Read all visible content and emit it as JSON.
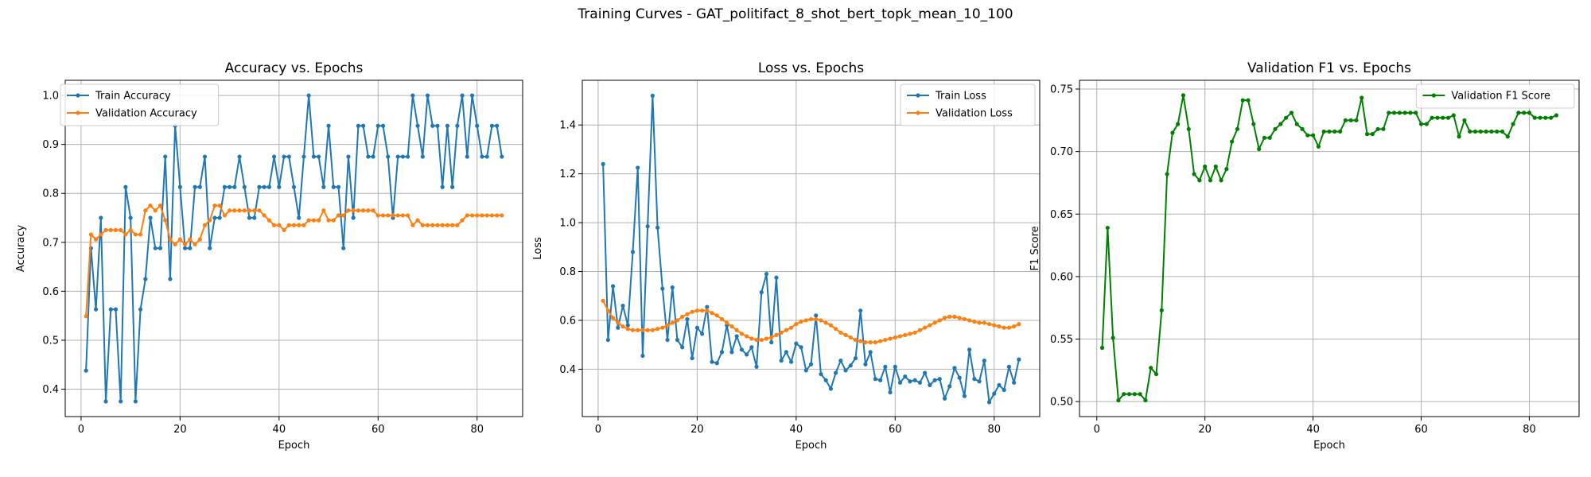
{
  "figure": {
    "title": "Training Curves - GAT_politifact_8_shot_bert_topk_mean_10_100"
  },
  "chart_data": [
    {
      "type": "line",
      "title": "Accuracy vs. Epochs",
      "xlabel": "Epoch",
      "ylabel": "Accuracy",
      "xlim": [
        -3.2,
        89.2
      ],
      "ylim": [
        0.344,
        1.031
      ],
      "xticks": [
        0,
        20,
        40,
        60,
        80
      ],
      "yticks": [
        0.4,
        0.5,
        0.6,
        0.7,
        0.8,
        0.9,
        1.0
      ],
      "ytick_labels": [
        "0.4",
        "0.5",
        "0.6",
        "0.7",
        "0.8",
        "0.9",
        "1.0"
      ],
      "grid": true,
      "legend_position": "top-left",
      "series": [
        {
          "name": "Train Accuracy",
          "color": "#1f77b4",
          "values": [
            0.438,
            0.688,
            0.563,
            0.75,
            0.375,
            0.563,
            0.563,
            0.375,
            0.813,
            0.75,
            0.375,
            0.563,
            0.625,
            0.75,
            0.688,
            0.688,
            0.875,
            0.625,
            0.938,
            0.813,
            0.688,
            0.688,
            0.813,
            0.813,
            0.875,
            0.688,
            0.75,
            0.75,
            0.813,
            0.813,
            0.813,
            0.875,
            0.813,
            0.75,
            0.75,
            0.813,
            0.813,
            0.813,
            0.875,
            0.813,
            0.875,
            0.875,
            0.813,
            0.75,
            0.875,
            1.0,
            0.875,
            0.875,
            0.813,
            0.938,
            0.813,
            0.813,
            0.688,
            0.875,
            0.75,
            0.938,
            0.938,
            0.875,
            0.875,
            0.938,
            0.938,
            0.875,
            0.75,
            0.875,
            0.875,
            0.875,
            1.0,
            0.938,
            0.875,
            1.0,
            0.938,
            0.938,
            0.813,
            0.938,
            0.813,
            0.938,
            1.0,
            0.875,
            1.0,
            0.938,
            0.875,
            0.875,
            0.938,
            0.938,
            0.875
          ]
        },
        {
          "name": "Validation Accuracy",
          "color": "#ff7f0e",
          "values": [
            0.549,
            0.716,
            0.706,
            0.716,
            0.725,
            0.725,
            0.725,
            0.725,
            0.716,
            0.725,
            0.716,
            0.716,
            0.765,
            0.775,
            0.765,
            0.775,
            0.745,
            0.706,
            0.696,
            0.706,
            0.696,
            0.706,
            0.696,
            0.706,
            0.735,
            0.745,
            0.775,
            0.775,
            0.755,
            0.765,
            0.765,
            0.765,
            0.765,
            0.765,
            0.765,
            0.765,
            0.755,
            0.745,
            0.735,
            0.735,
            0.725,
            0.735,
            0.735,
            0.735,
            0.735,
            0.745,
            0.745,
            0.745,
            0.765,
            0.745,
            0.745,
            0.755,
            0.755,
            0.765,
            0.765,
            0.765,
            0.765,
            0.765,
            0.765,
            0.755,
            0.755,
            0.755,
            0.755,
            0.755,
            0.755,
            0.755,
            0.735,
            0.745,
            0.735,
            0.735,
            0.735,
            0.735,
            0.735,
            0.735,
            0.735,
            0.735,
            0.745,
            0.755,
            0.755,
            0.755,
            0.755,
            0.755,
            0.755,
            0.755,
            0.755
          ]
        }
      ]
    },
    {
      "type": "line",
      "title": "Loss vs. Epochs",
      "xlabel": "Epoch",
      "ylabel": "Loss",
      "xlim": [
        -3.2,
        89.2
      ],
      "ylim": [
        0.206,
        1.583
      ],
      "xticks": [
        0,
        20,
        40,
        60,
        80
      ],
      "yticks": [
        0.4,
        0.6,
        0.8,
        1.0,
        1.2,
        1.4
      ],
      "ytick_labels": [
        "0.4",
        "0.6",
        "0.8",
        "1.0",
        "1.2",
        "1.4"
      ],
      "grid": true,
      "legend_position": "top-right",
      "series": [
        {
          "name": "Train Loss",
          "color": "#1f77b4",
          "values": [
            1.24,
            0.52,
            0.74,
            0.57,
            0.66,
            0.58,
            0.88,
            1.225,
            0.455,
            0.985,
            1.52,
            0.98,
            0.73,
            0.52,
            0.735,
            0.52,
            0.49,
            0.605,
            0.445,
            0.57,
            0.545,
            0.655,
            0.43,
            0.425,
            0.47,
            0.58,
            0.47,
            0.535,
            0.48,
            0.46,
            0.49,
            0.41,
            0.715,
            0.79,
            0.51,
            0.775,
            0.435,
            0.47,
            0.43,
            0.505,
            0.49,
            0.395,
            0.42,
            0.62,
            0.38,
            0.355,
            0.32,
            0.385,
            0.435,
            0.395,
            0.415,
            0.445,
            0.64,
            0.42,
            0.47,
            0.36,
            0.355,
            0.41,
            0.305,
            0.41,
            0.345,
            0.37,
            0.35,
            0.355,
            0.345,
            0.385,
            0.335,
            0.355,
            0.36,
            0.28,
            0.33,
            0.405,
            0.365,
            0.29,
            0.48,
            0.36,
            0.35,
            0.435,
            0.265,
            0.3,
            0.335,
            0.315,
            0.41,
            0.345,
            0.44
          ]
        },
        {
          "name": "Validation Loss",
          "color": "#ff7f0e",
          "values": [
            0.68,
            0.64,
            0.61,
            0.59,
            0.575,
            0.565,
            0.56,
            0.56,
            0.56,
            0.56,
            0.56,
            0.565,
            0.57,
            0.58,
            0.59,
            0.6,
            0.615,
            0.625,
            0.635,
            0.64,
            0.64,
            0.64,
            0.63,
            0.62,
            0.605,
            0.59,
            0.575,
            0.56,
            0.545,
            0.535,
            0.525,
            0.52,
            0.52,
            0.525,
            0.53,
            0.54,
            0.55,
            0.56,
            0.57,
            0.585,
            0.595,
            0.6,
            0.605,
            0.605,
            0.6,
            0.59,
            0.58,
            0.565,
            0.55,
            0.54,
            0.53,
            0.52,
            0.515,
            0.51,
            0.51,
            0.51,
            0.515,
            0.52,
            0.525,
            0.53,
            0.535,
            0.54,
            0.545,
            0.55,
            0.56,
            0.57,
            0.58,
            0.59,
            0.6,
            0.61,
            0.615,
            0.615,
            0.61,
            0.605,
            0.6,
            0.595,
            0.59,
            0.59,
            0.585,
            0.58,
            0.575,
            0.57,
            0.57,
            0.575,
            0.585
          ]
        }
      ]
    },
    {
      "type": "line",
      "title": "Validation F1 vs. Epochs",
      "xlabel": "Epoch",
      "ylabel": "F1 Score",
      "xlim": [
        -3.2,
        89.2
      ],
      "ylim": [
        0.488,
        0.757
      ],
      "xticks": [
        0,
        20,
        40,
        60,
        80
      ],
      "yticks": [
        0.5,
        0.55,
        0.6,
        0.65,
        0.7,
        0.75
      ],
      "ytick_labels": [
        "0.50",
        "0.55",
        "0.60",
        "0.65",
        "0.70",
        "0.75"
      ],
      "grid": true,
      "legend_position": "top-right",
      "series": [
        {
          "name": "Validation F1 Score",
          "color": "#008000",
          "values": [
            0.543,
            0.639,
            0.551,
            0.501,
            0.506,
            0.506,
            0.506,
            0.506,
            0.501,
            0.527,
            0.522,
            0.573,
            0.682,
            0.715,
            0.722,
            0.745,
            0.718,
            0.682,
            0.677,
            0.688,
            0.677,
            0.688,
            0.677,
            0.686,
            0.708,
            0.718,
            0.741,
            0.741,
            0.722,
            0.702,
            0.711,
            0.711,
            0.718,
            0.722,
            0.727,
            0.731,
            0.722,
            0.718,
            0.713,
            0.713,
            0.704,
            0.716,
            0.716,
            0.716,
            0.716,
            0.725,
            0.725,
            0.725,
            0.743,
            0.714,
            0.714,
            0.718,
            0.718,
            0.731,
            0.731,
            0.731,
            0.731,
            0.731,
            0.731,
            0.722,
            0.722,
            0.727,
            0.727,
            0.727,
            0.727,
            0.729,
            0.712,
            0.725,
            0.716,
            0.716,
            0.716,
            0.716,
            0.716,
            0.716,
            0.716,
            0.712,
            0.722,
            0.731,
            0.731,
            0.731,
            0.727,
            0.727,
            0.727,
            0.727,
            0.729
          ]
        }
      ]
    }
  ]
}
